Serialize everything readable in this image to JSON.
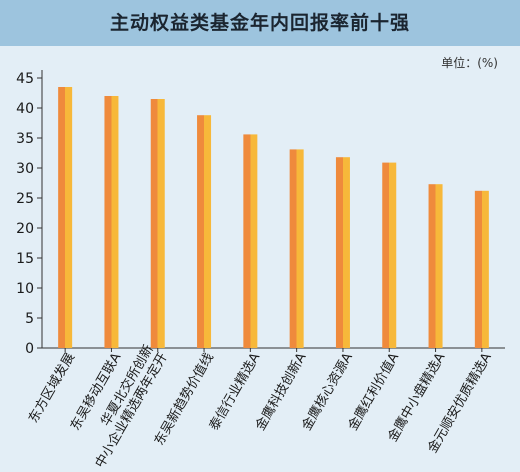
{
  "chart_data": {
    "type": "bar",
    "title": "主动权益类基金年内回报率前十强",
    "unit_label": "单位：(%)",
    "categories": [
      "东方区域发展",
      "东吴移动互联A",
      "华夏北交所创新中小企业精选两年定开",
      "东吴新趋势价值线",
      "泰信行业精选A",
      "金鹰科技创新A",
      "金鹰核心资源A",
      "金鹰红利价值A",
      "金鹰中小盘精选A",
      "金元顺安优质精选A"
    ],
    "category_lines": [
      [
        "东方区域发展"
      ],
      [
        "东吴移动互联A"
      ],
      [
        "华夏北交所创新",
        "中小企业精选两年定开"
      ],
      [
        "东吴新趋势价值线"
      ],
      [
        "泰信行业精选A"
      ],
      [
        "金鹰科技创新A"
      ],
      [
        "金鹰核心资源A"
      ],
      [
        "金鹰红利价值A"
      ],
      [
        "金鹰中小盘精选A"
      ],
      [
        "金元顺安优质精选A"
      ]
    ],
    "values": [
      43.5,
      42.0,
      41.5,
      38.8,
      35.6,
      33.1,
      31.8,
      30.9,
      27.3,
      26.2
    ],
    "ylim": [
      0,
      45
    ],
    "yticks": [
      "0",
      "5",
      "10",
      "15",
      "20",
      "25",
      "30",
      "35",
      "40",
      "45"
    ],
    "grid": false,
    "colors": {
      "bar_left": "#ef8a3c",
      "bar_right": "#f7b83a",
      "axis": "#333333",
      "text": "#1a1a1a"
    }
  }
}
